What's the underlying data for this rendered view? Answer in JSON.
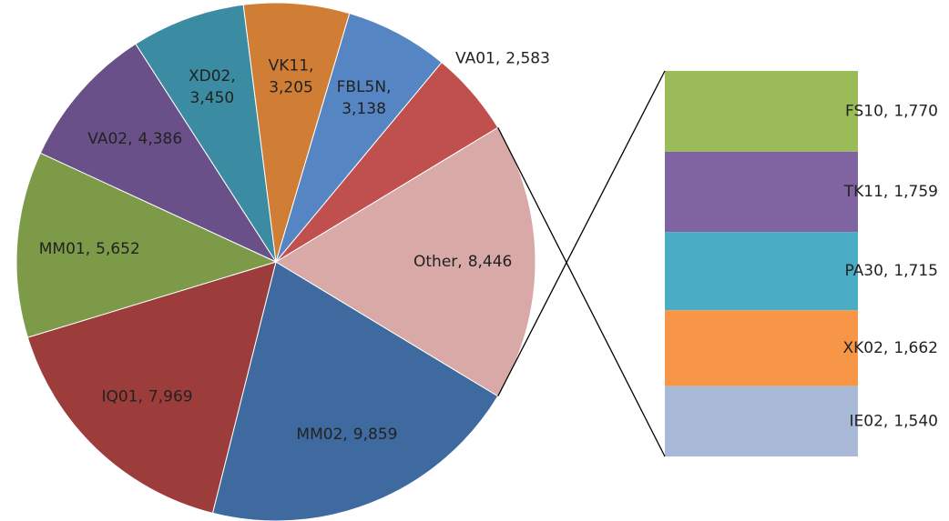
{
  "chart_data": {
    "type": "pie-of-bar",
    "categories": [
      "MM02",
      "IQ01",
      "MM01",
      "VA02",
      "XD02",
      "VK11",
      "FBL5N",
      "VA01",
      "Other"
    ],
    "values": [
      9859,
      7969,
      5652,
      4386,
      3450,
      3205,
      3138,
      2583,
      8446
    ],
    "value_labels": [
      "9,859",
      "7,969",
      "5,652",
      "4,386",
      "3,450",
      "3,205",
      "3,138",
      "2,583",
      "8,446"
    ],
    "colors": [
      "#3f6a9f",
      "#9c3d3b",
      "#7d9a49",
      "#6a5089",
      "#3b8ba2",
      "#d07d35",
      "#5585c2",
      "#c0504d",
      "#d9a9a8"
    ],
    "label_separator": ",",
    "bar": {
      "categories": [
        "FS10",
        "TK11",
        "PA30",
        "XK02",
        "IE02"
      ],
      "values": [
        1770,
        1759,
        1715,
        1662,
        1540
      ],
      "value_labels": [
        "1,770",
        "1,759",
        "1,715",
        "1,662",
        "1,540"
      ],
      "colors": [
        "#9bbb59",
        "#8064a2",
        "#4bacc6",
        "#f79646",
        "#a8b9d8"
      ]
    }
  }
}
